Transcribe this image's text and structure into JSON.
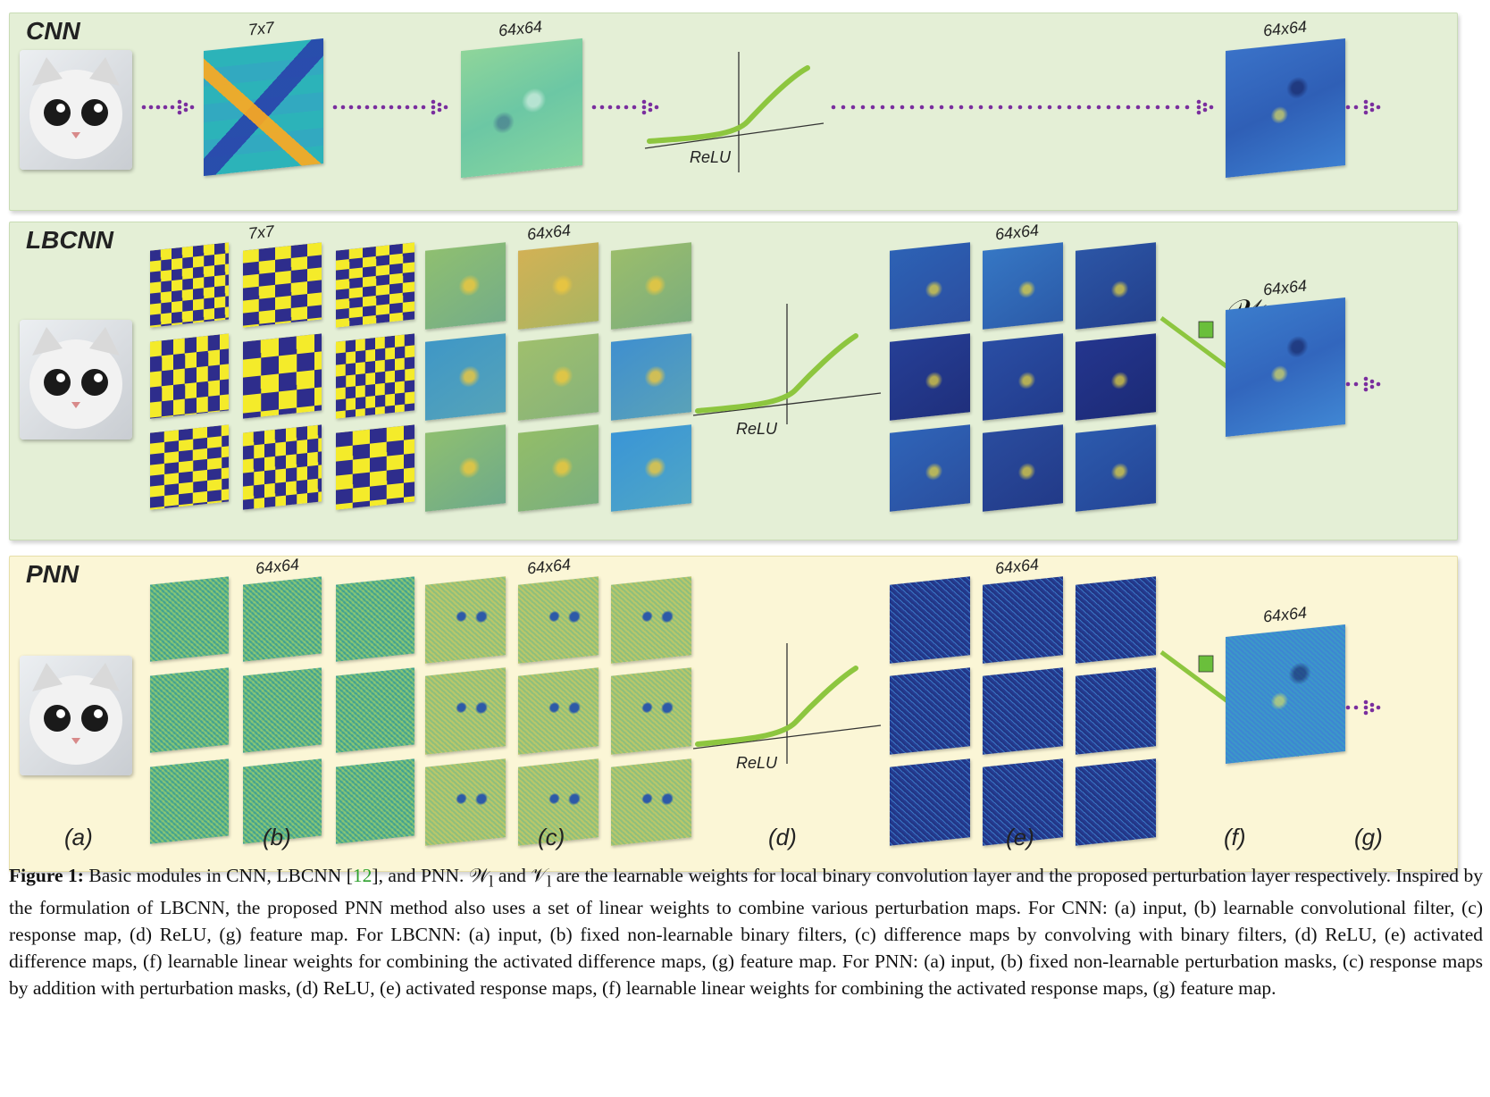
{
  "rows": {
    "cnn": {
      "label": "CNN"
    },
    "lbcnn": {
      "label": "LBCNN"
    },
    "pnn": {
      "label": "PNN"
    }
  },
  "dims": {
    "filter": "7x7",
    "map": "64x64"
  },
  "relu_label": "ReLU",
  "weights": {
    "lbcnn_symbol": "𝒲",
    "lbcnn_sub": "l",
    "pnn_symbol": "𝒱",
    "pnn_sub": "l"
  },
  "sublabels": [
    "(a)",
    "(b)",
    "(c)",
    "(d)",
    "(e)",
    "(f)",
    "(g)"
  ],
  "caption": {
    "figure_label": "Figure 1:",
    "part1": " Basic modules in CNN, LBCNN [",
    "cite": "12",
    "part2": "], and PNN. 𝒲",
    "sub1": "l",
    "part3": " and 𝒱",
    "sub2": "l",
    "part4": " are the learnable weights for local binary convolution layer and the proposed perturbation layer respectively. Inspired by the formulation of LBCNN, the proposed PNN method also uses a set of linear weights to combine various perturbation maps. For CNN: (a) input, (b) learnable convolutional filter, (c) response map, (d) ReLU, (g) feature map. For LBCNN: (a) input, (b) fixed non-learnable binary filters, (c) difference maps by convolving with binary filters, (d) ReLU, (e) activated difference maps, (f) learnable linear weights for combining the activated difference maps, (g) feature map. For PNN: (a) input, (b) fixed non-learnable perturbation masks, (c) response maps by addition with perturbation masks, (d) ReLU, (e) activated response maps, (f) learnable linear weights for combining the activated response maps, (g) feature map."
  },
  "colors": {
    "arrow": "#7a2e9e",
    "relu": "#8dc63f",
    "binary_yellow": "#f4eb2a",
    "binary_blue": "#2e2d8c",
    "weight_boxes": [
      "#6abf3b",
      "#2aa7e0",
      "#8a3ca8",
      "#f7e81e",
      "#e4288a",
      "#8a5a3b"
    ]
  }
}
